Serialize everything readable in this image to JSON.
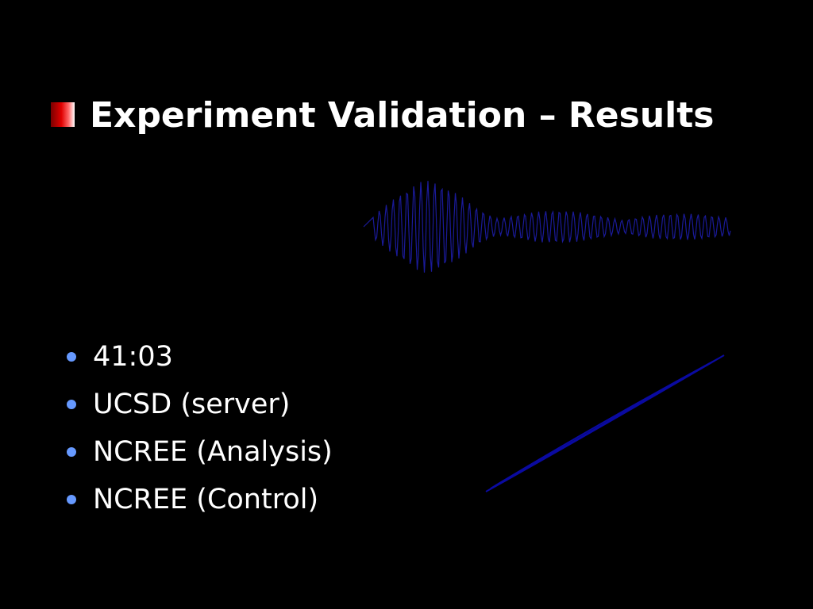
{
  "title": "Experiment Validation – Results",
  "bullets": [
    "41:03",
    "UCSD (server)",
    "NCREE (Analysis)",
    "NCREE (Control)"
  ]
}
